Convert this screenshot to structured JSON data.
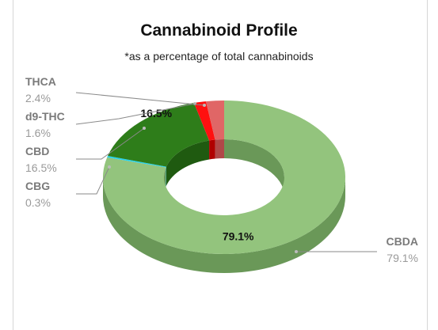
{
  "chart_data": {
    "type": "pie",
    "title": "Cannabinoid Profile",
    "subtitle": "*as a percentage of total cannabinoids",
    "slices": [
      {
        "name": "CBDA",
        "value": 79.1,
        "value_label": "79.1%",
        "color": "#93c47d",
        "side": "#6a9858"
      },
      {
        "name": "CBG",
        "value": 0.3,
        "value_label": "0.3%",
        "color": "#22d3ee",
        "side": "#1aa5b8"
      },
      {
        "name": "CBD",
        "value": 16.5,
        "value_label": "16.5%",
        "color": "#2e7d1a",
        "side": "#1f5a10"
      },
      {
        "name": "d9-THC",
        "value": 1.6,
        "value_label": "1.6%",
        "color": "#ff1010",
        "side": "#b00000"
      },
      {
        "name": "THCA",
        "value": 2.4,
        "value_label": "2.4%",
        "color": "#e06666",
        "side": "#b04848"
      }
    ],
    "inside_labels": [
      "79.1%",
      "16.5%"
    ],
    "legend": "none (callout labels)"
  }
}
